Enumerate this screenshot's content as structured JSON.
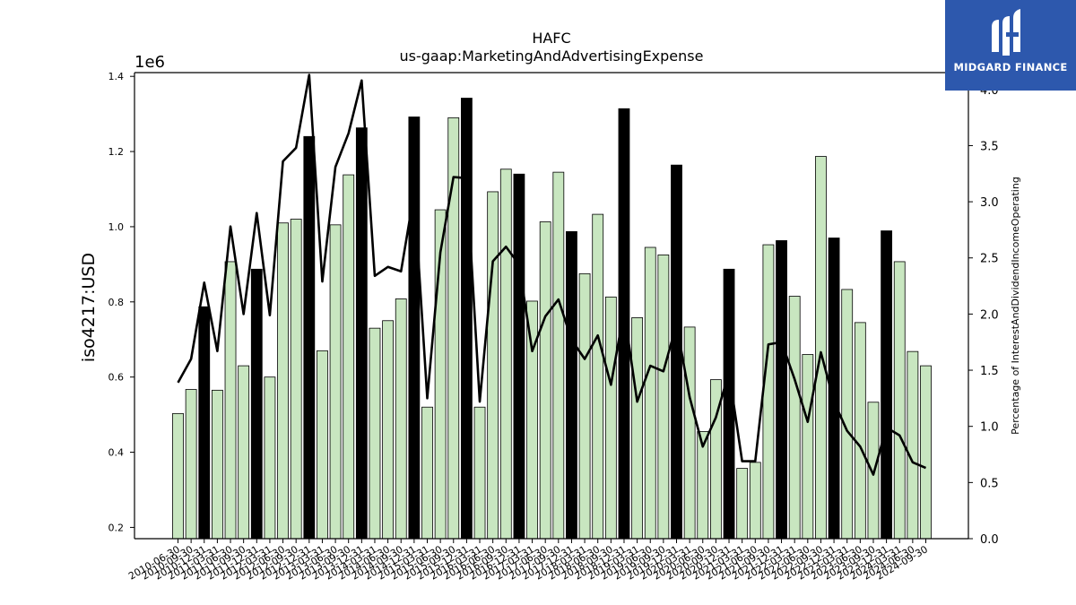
{
  "chart_data": {
    "type": "bar",
    "title": "HAFC",
    "subtitle": "us-gaap:MarketingAndAdvertisingExpense",
    "ylabel": "iso4217:USD",
    "y_offset_label": "1e6",
    "y2label": "Percentage of InterestAndDividendIncomeOperating",
    "ylim": [
      170000,
      1410000
    ],
    "y2lim": [
      0.0,
      4.15
    ],
    "yticks": [
      "0.2",
      "0.4",
      "0.6",
      "0.8",
      "1.0",
      "1.2",
      "1.4"
    ],
    "y2ticks": [
      "0.0",
      "0.5",
      "1.0",
      "1.5",
      "2.0",
      "2.5",
      "3.0",
      "3.5",
      "4.0"
    ],
    "categories": [
      "2010-06-30",
      "2010-09-30",
      "2010-12-31",
      "2011-03-31",
      "2011-06-30",
      "2011-09-30",
      "2011-12-31",
      "2012-03-31",
      "2012-06-30",
      "2012-09-30",
      "2012-12-31",
      "2013-03-31",
      "2013-06-30",
      "2013-09-30",
      "2013-12-31",
      "2014-03-31",
      "2014-06-30",
      "2014-09-30",
      "2014-12-31",
      "2015-03-31",
      "2015-06-30",
      "2015-09-30",
      "2015-12-31",
      "2016-03-31",
      "2016-06-30",
      "2016-09-30",
      "2016-12-31",
      "2017-03-31",
      "2017-06-30",
      "2017-09-30",
      "2017-12-31",
      "2018-03-31",
      "2018-06-30",
      "2018-09-30",
      "2018-12-31",
      "2019-03-31",
      "2019-06-30",
      "2019-09-30",
      "2019-12-31",
      "2020-03-31",
      "2020-06-30",
      "2020-09-30",
      "2020-12-31",
      "2021-03-31",
      "2021-06-30",
      "2021-09-30",
      "2021-12-31",
      "2022-03-31",
      "2022-06-30",
      "2022-09-30",
      "2022-12-31",
      "2023-03-31",
      "2023-06-30",
      "2023-09-30",
      "2023-12-31",
      "2024-03-31",
      "2024-06-30",
      "2024-09-30"
    ],
    "bar_values": [
      503000,
      567000,
      787000,
      565000,
      907000,
      630000,
      887000,
      600000,
      1010000,
      1020000,
      1240000,
      670000,
      1005000,
      1138000,
      1263000,
      730000,
      750000,
      808000,
      1292000,
      520000,
      1045000,
      1290000,
      1342000,
      520000,
      1093000,
      1153000,
      1140000,
      802000,
      1013000,
      1145000,
      987000,
      875000,
      1033000,
      813000,
      1314000,
      758000,
      945000,
      925000,
      1164000,
      733000,
      455000,
      593000,
      887000,
      357000,
      373000,
      952000,
      963000,
      815000,
      660000,
      1187000,
      970000,
      833000,
      745000,
      533000,
      989000,
      907000,
      668000,
      630000
    ],
    "highlight": [
      false,
      false,
      true,
      false,
      false,
      false,
      true,
      false,
      false,
      false,
      true,
      false,
      false,
      false,
      true,
      false,
      false,
      false,
      true,
      false,
      false,
      false,
      true,
      false,
      false,
      false,
      true,
      false,
      false,
      false,
      true,
      false,
      false,
      false,
      true,
      false,
      false,
      false,
      true,
      false,
      false,
      false,
      true,
      false,
      false,
      false,
      true,
      false,
      false,
      false,
      true,
      false,
      false,
      false,
      true,
      false,
      false,
      false
    ],
    "line_values": [
      1.39,
      1.6,
      2.28,
      1.67,
      2.78,
      2.0,
      2.9,
      1.99,
      3.36,
      3.48,
      4.13,
      2.29,
      3.31,
      3.61,
      4.08,
      2.34,
      2.42,
      2.38,
      3.08,
      1.25,
      2.55,
      3.22,
      3.21,
      1.22,
      2.47,
      2.6,
      2.44,
      1.67,
      1.98,
      2.13,
      1.77,
      1.6,
      1.81,
      1.37,
      2.03,
      1.22,
      1.54,
      1.49,
      1.91,
      1.26,
      0.82,
      1.08,
      1.48,
      0.69,
      0.69,
      1.73,
      1.75,
      1.42,
      1.04,
      1.66,
      1.22,
      0.96,
      0.82,
      0.57,
      0.99,
      0.92,
      0.68,
      0.63
    ],
    "colors": {
      "bar": "#c8e6c0",
      "highlight": "#000000",
      "line": "#000000"
    },
    "grid": false
  },
  "logo": {
    "text": "MIDGARD FINANCE"
  }
}
